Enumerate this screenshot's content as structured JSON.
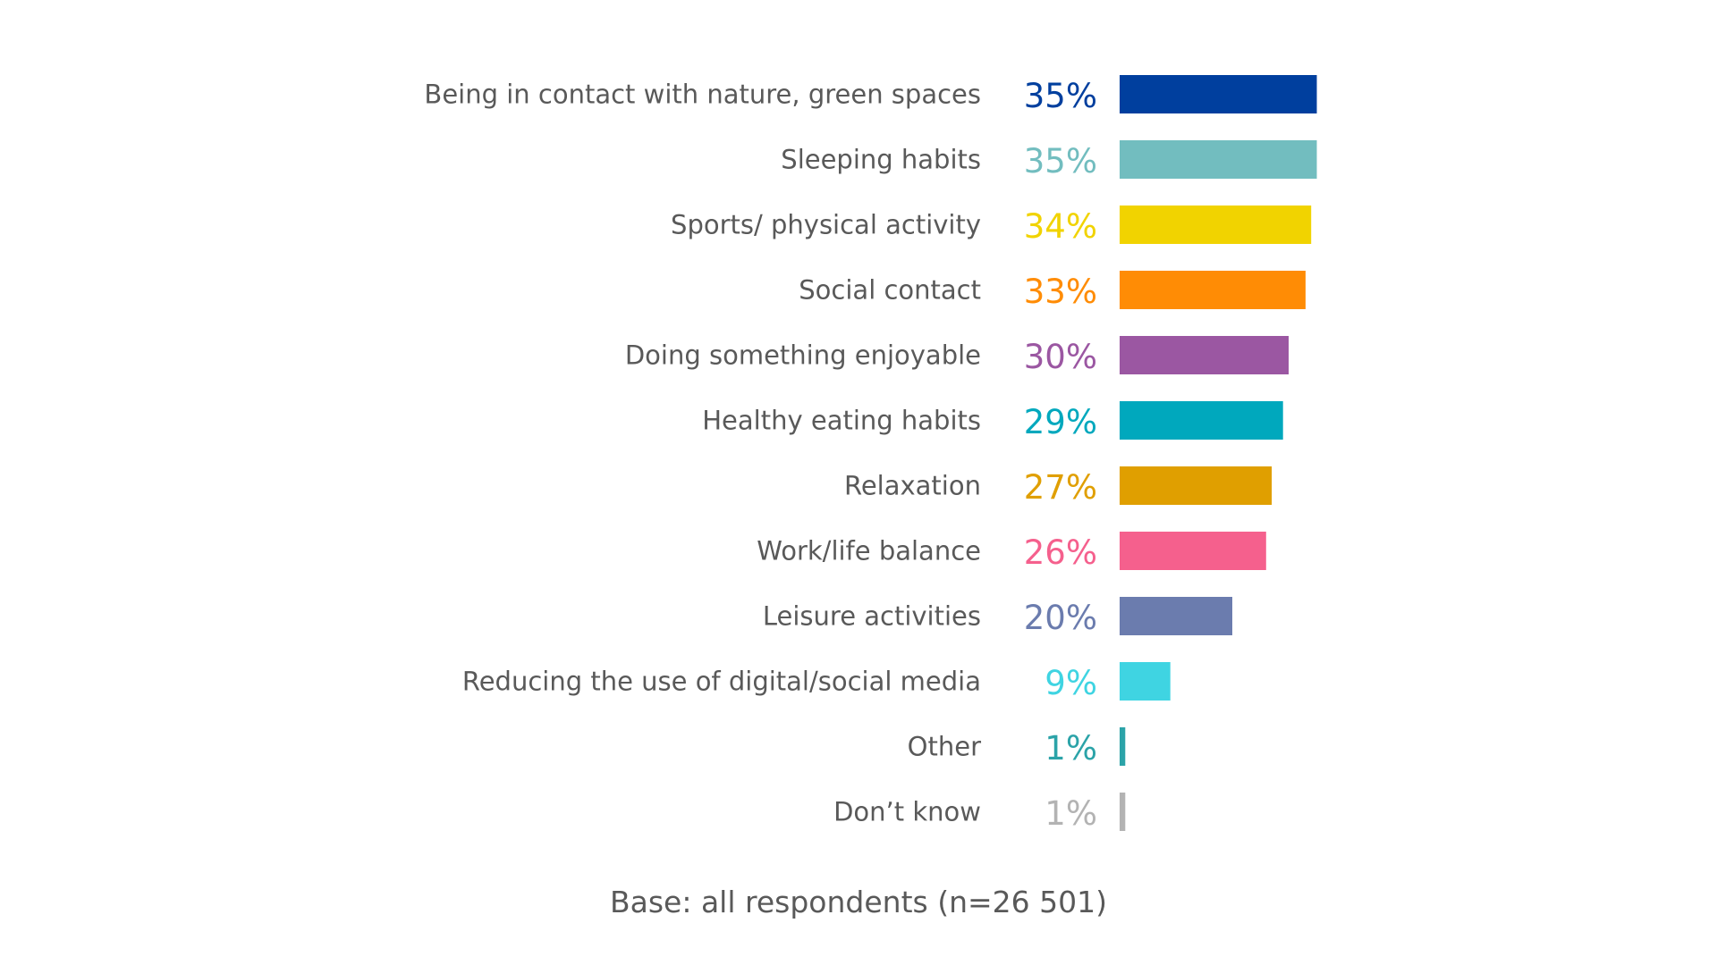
{
  "chart_data": {
    "type": "bar",
    "orientation": "horizontal",
    "title": "",
    "xlabel": "",
    "ylabel": "",
    "xlim": [
      0,
      40
    ],
    "grid": false,
    "legend": "none",
    "categories": [
      "Being in contact with nature, green spaces",
      "Sleeping habits",
      "Sports/ physical activity",
      "Social contact",
      "Doing something enjoyable",
      "Healthy eating habits",
      "Relaxation",
      "Work/life balance",
      "Leisure activities",
      "Reducing the use of digital/social media",
      "Other",
      "Don’t know"
    ],
    "values": [
      35,
      35,
      34,
      33,
      30,
      29,
      27,
      26,
      20,
      9,
      1,
      1
    ],
    "value_labels": [
      "35%",
      "35%",
      "34%",
      "33%",
      "30%",
      "29%",
      "27%",
      "26%",
      "20%",
      "9%",
      "1%",
      "1%"
    ],
    "colors": [
      "#003f9e",
      "#72bdbf",
      "#f1d300",
      "#ff8c05",
      "#9b57a2",
      "#00a8bd",
      "#e09f00",
      "#f5608d",
      "#6b7cae",
      "#3fd4e2",
      "#2ba3a8",
      "#b3b3b3"
    ],
    "note": "Base: all respondents (n=26 501)"
  }
}
